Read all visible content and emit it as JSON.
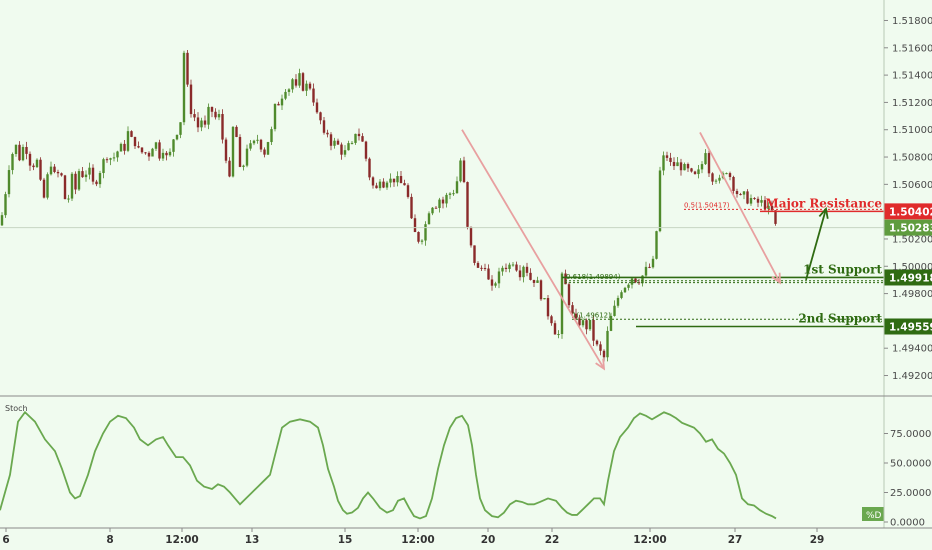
{
  "chart_data": {
    "type": "candlestick",
    "price_axis": {
      "range": [
        1.4905,
        1.5195
      ],
      "ticks": [
        "1.51800",
        "1.51600",
        "1.51400",
        "1.51200",
        "1.51000",
        "1.50800",
        "1.50600",
        "1.50200",
        "1.50000",
        "1.49800",
        "1.49400",
        "1.49200"
      ]
    },
    "x_axis": {
      "ticks": [
        "6",
        "8",
        "12:00",
        "13",
        "15",
        "12:00",
        "20",
        "22",
        "12:00",
        "27",
        "29"
      ]
    },
    "current_price": {
      "value": 1.50283,
      "label": "1.50283",
      "color": "#5f9c3e"
    },
    "levels": [
      {
        "name": "Major Resistance",
        "value": 1.50402,
        "label": "1.50402",
        "color": "#e02b2b"
      },
      {
        "name": "1st Support",
        "value": 1.49918,
        "label": "1.49918",
        "color": "#2f6b12"
      },
      {
        "name": "2nd Support",
        "value": 1.49559,
        "label": "1.49559",
        "color": "#2f6b12"
      }
    ],
    "fib_annotations": [
      {
        "text": "0.5(1.50417)",
        "value": 1.50417,
        "color": "#e02b2b"
      },
      {
        "text": "0.618(1.49894)",
        "value": 1.49894,
        "color": "#2f6b12"
      },
      {
        "text": "1(1.49612)",
        "value": 1.49612,
        "color": "#2f6b12"
      }
    ],
    "close_path": [
      [
        0,
        1.503
      ],
      [
        4,
        1.5045
      ],
      [
        8,
        1.507
      ],
      [
        12,
        1.5082
      ],
      [
        16,
        1.5088
      ],
      [
        20,
        1.5078
      ],
      [
        24,
        1.509
      ],
      [
        28,
        1.5082
      ],
      [
        32,
        1.507
      ],
      [
        36,
        1.5082
      ],
      [
        40,
        1.5062
      ],
      [
        44,
        1.505
      ],
      [
        48,
        1.5068
      ],
      [
        52,
        1.5078
      ],
      [
        56,
        1.506
      ],
      [
        60,
        1.5075
      ],
      [
        64,
        1.505
      ],
      [
        68,
        1.5048
      ],
      [
        72,
        1.5065
      ],
      [
        76,
        1.5055
      ],
      [
        80,
        1.5075
      ],
      [
        84,
        1.5062
      ],
      [
        88,
        1.5075
      ],
      [
        92,
        1.506
      ],
      [
        96,
        1.5062
      ],
      [
        100,
        1.507
      ],
      [
        104,
        1.5078
      ],
      [
        108,
        1.5082
      ],
      [
        112,
        1.5078
      ],
      [
        116,
        1.5082
      ],
      [
        120,
        1.5088
      ],
      [
        124,
        1.5085
      ],
      [
        128,
        1.5098
      ],
      [
        132,
        1.5092
      ],
      [
        136,
        1.509
      ],
      [
        140,
        1.5082
      ],
      [
        144,
        1.5085
      ],
      [
        148,
        1.508
      ],
      [
        152,
        1.5088
      ],
      [
        156,
        1.509
      ],
      [
        160,
        1.508
      ],
      [
        164,
        1.5088
      ],
      [
        168,
        1.5075
      ],
      [
        172,
        1.509
      ],
      [
        176,
        1.51
      ],
      [
        180,
        1.5095
      ],
      [
        183,
        1.5165
      ],
      [
        186,
        1.514
      ],
      [
        190,
        1.5115
      ],
      [
        194,
        1.511
      ],
      [
        198,
        1.5102
      ],
      [
        202,
        1.5108
      ],
      [
        206,
        1.51
      ],
      [
        210,
        1.5122
      ],
      [
        214,
        1.5105
      ],
      [
        218,
        1.5115
      ],
      [
        222,
        1.5095
      ],
      [
        226,
        1.508
      ],
      [
        229,
        1.5055
      ],
      [
        232,
        1.5102
      ],
      [
        236,
        1.5098
      ],
      [
        240,
        1.507
      ],
      [
        244,
        1.5075
      ],
      [
        248,
        1.5092
      ],
      [
        252,
        1.5085
      ],
      [
        256,
        1.5095
      ],
      [
        260,
        1.509
      ],
      [
        264,
        1.5082
      ],
      [
        268,
        1.5092
      ],
      [
        272,
        1.51
      ],
      [
        276,
        1.5122
      ],
      [
        280,
        1.5118
      ],
      [
        284,
        1.5132
      ],
      [
        288,
        1.5128
      ],
      [
        292,
        1.5138
      ],
      [
        296,
        1.513
      ],
      [
        300,
        1.514
      ],
      [
        304,
        1.5128
      ],
      [
        308,
        1.5135
      ],
      [
        312,
        1.5128
      ],
      [
        316,
        1.5112
      ],
      [
        320,
        1.5108
      ],
      [
        324,
        1.5095
      ],
      [
        328,
        1.5098
      ],
      [
        332,
        1.5088
      ],
      [
        336,
        1.5092
      ],
      [
        340,
        1.5085
      ],
      [
        344,
        1.5082
      ],
      [
        348,
        1.5088
      ],
      [
        352,
        1.5088
      ],
      [
        356,
        1.51
      ],
      [
        360,
        1.5095
      ],
      [
        364,
        1.5088
      ],
      [
        368,
        1.507
      ],
      [
        372,
        1.506
      ],
      [
        376,
        1.5055
      ],
      [
        380,
        1.5065
      ],
      [
        384,
        1.506
      ],
      [
        388,
        1.5065
      ],
      [
        392,
        1.5062
      ],
      [
        396,
        1.5065
      ],
      [
        400,
        1.506
      ],
      [
        404,
        1.5062
      ],
      [
        408,
        1.505
      ],
      [
        412,
        1.503
      ],
      [
        416,
        1.5022
      ],
      [
        420,
        1.5018
      ],
      [
        424,
        1.5025
      ],
      [
        428,
        1.504
      ],
      [
        432,
        1.5045
      ],
      [
        436,
        1.5045
      ],
      [
        440,
        1.505
      ],
      [
        444,
        1.5045
      ],
      [
        448,
        1.5055
      ],
      [
        452,
        1.5052
      ],
      [
        456,
        1.506
      ],
      [
        460,
        1.507
      ],
      [
        462,
        1.51
      ],
      [
        465,
        1.504
      ],
      [
        468,
        1.5025
      ],
      [
        472,
        1.501
      ],
      [
        476,
        1.5
      ],
      [
        480,
        1.4995
      ],
      [
        484,
        1.5005
      ],
      [
        488,
        1.499
      ],
      [
        492,
        1.4983
      ],
      [
        496,
        1.499
      ],
      [
        500,
        1.4995
      ],
      [
        504,
        1.5002
      ],
      [
        508,
        1.4998
      ],
      [
        512,
        1.5005
      ],
      [
        516,
        1.5
      ],
      [
        520,
        1.4995
      ],
      [
        524,
        1.5002
      ],
      [
        528,
        1.4995
      ],
      [
        532,
        1.4988
      ],
      [
        536,
        1.4992
      ],
      [
        540,
        1.498
      ],
      [
        544,
        1.4975
      ],
      [
        548,
        1.4965
      ],
      [
        552,
        1.496
      ],
      [
        556,
        1.495
      ],
      [
        560,
        1.495
      ],
      [
        562,
        1.4992
      ],
      [
        566,
        1.4985
      ],
      [
        570,
        1.497
      ],
      [
        574,
        1.496
      ],
      [
        578,
        1.4958
      ],
      [
        582,
        1.496
      ],
      [
        586,
        1.4955
      ],
      [
        590,
        1.4958
      ],
      [
        594,
        1.4945
      ],
      [
        598,
        1.494
      ],
      [
        602,
        1.4935
      ],
      [
        605,
        1.4932
      ],
      [
        608,
        1.4955
      ],
      [
        612,
        1.4965
      ],
      [
        616,
        1.4972
      ],
      [
        620,
        1.4982
      ],
      [
        624,
        1.4985
      ],
      [
        628,
        1.4988
      ],
      [
        632,
        1.4992
      ],
      [
        636,
        1.499
      ],
      [
        640,
        1.499
      ],
      [
        644,
        1.4995
      ],
      [
        648,
        1.5
      ],
      [
        652,
        1.4998
      ],
      [
        656,
        1.5018
      ],
      [
        659,
        1.5065
      ],
      [
        662,
        1.5078
      ],
      [
        666,
        1.5082
      ],
      [
        670,
        1.5075
      ],
      [
        674,
        1.5074
      ],
      [
        678,
        1.5075
      ],
      [
        682,
        1.5072
      ],
      [
        686,
        1.5072
      ],
      [
        690,
        1.5068
      ],
      [
        694,
        1.5065
      ],
      [
        698,
        1.5068
      ],
      [
        702,
        1.5075
      ],
      [
        705,
        1.5088
      ],
      [
        708,
        1.5072
      ],
      [
        712,
        1.5065
      ],
      [
        716,
        1.5065
      ],
      [
        720,
        1.5062
      ],
      [
        724,
        1.5068
      ],
      [
        728,
        1.5072
      ],
      [
        732,
        1.506
      ],
      [
        736,
        1.5055
      ],
      [
        740,
        1.505
      ],
      [
        744,
        1.5052
      ],
      [
        748,
        1.5048
      ],
      [
        752,
        1.505
      ],
      [
        756,
        1.5045
      ],
      [
        760,
        1.5048
      ],
      [
        764,
        1.5045
      ],
      [
        768,
        1.5042
      ],
      [
        772,
        1.504
      ],
      [
        776,
        1.5028
      ]
    ],
    "arrows": [
      {
        "from": [
          462,
          1.51
        ],
        "to": [
          604,
          1.4925
        ],
        "color": "#e8a0a0"
      },
      {
        "from": [
          700,
          1.5098
        ],
        "to": [
          780,
          1.4988
        ],
        "color": "#e8a0a0"
      },
      {
        "from": [
          806,
          1.499
        ],
        "to": [
          826,
          1.5042
        ],
        "color": "#2f6b12"
      }
    ],
    "stoch": {
      "label": "Stoch",
      "series_label": "%D",
      "color": "#6aa84f",
      "range": [
        0,
        100
      ],
      "ticks": [
        "75.0000",
        "50.0000",
        "25.0000",
        "0.0000"
      ],
      "values": [
        [
          0,
          10
        ],
        [
          10,
          40
        ],
        [
          18,
          85
        ],
        [
          25,
          93
        ],
        [
          35,
          85
        ],
        [
          45,
          70
        ],
        [
          55,
          60
        ],
        [
          62,
          45
        ],
        [
          70,
          25
        ],
        [
          75,
          20
        ],
        [
          80,
          22
        ],
        [
          88,
          40
        ],
        [
          95,
          60
        ],
        [
          103,
          75
        ],
        [
          110,
          85
        ],
        [
          118,
          90
        ],
        [
          126,
          88
        ],
        [
          134,
          80
        ],
        [
          140,
          70
        ],
        [
          148,
          65
        ],
        [
          156,
          70
        ],
        [
          163,
          72
        ],
        [
          168,
          65
        ],
        [
          176,
          55
        ],
        [
          183,
          55
        ],
        [
          190,
          48
        ],
        [
          197,
          35
        ],
        [
          204,
          30
        ],
        [
          212,
          28
        ],
        [
          218,
          32
        ],
        [
          224,
          30
        ],
        [
          230,
          25
        ],
        [
          235,
          20
        ],
        [
          240,
          15
        ],
        [
          246,
          20
        ],
        [
          252,
          25
        ],
        [
          258,
          30
        ],
        [
          264,
          35
        ],
        [
          270,
          40
        ],
        [
          276,
          60
        ],
        [
          282,
          80
        ],
        [
          290,
          85
        ],
        [
          300,
          87
        ],
        [
          310,
          85
        ],
        [
          318,
          80
        ],
        [
          323,
          65
        ],
        [
          328,
          45
        ],
        [
          334,
          30
        ],
        [
          338,
          18
        ],
        [
          343,
          10
        ],
        [
          347,
          7
        ],
        [
          352,
          8
        ],
        [
          358,
          12
        ],
        [
          363,
          20
        ],
        [
          368,
          25
        ],
        [
          373,
          20
        ],
        [
          380,
          12
        ],
        [
          387,
          8
        ],
        [
          393,
          10
        ],
        [
          398,
          18
        ],
        [
          404,
          20
        ],
        [
          409,
          12
        ],
        [
          414,
          5
        ],
        [
          420,
          3
        ],
        [
          426,
          5
        ],
        [
          432,
          20
        ],
        [
          438,
          45
        ],
        [
          444,
          65
        ],
        [
          450,
          80
        ],
        [
          456,
          88
        ],
        [
          462,
          90
        ],
        [
          468,
          82
        ],
        [
          472,
          65
        ],
        [
          476,
          40
        ],
        [
          480,
          20
        ],
        [
          485,
          10
        ],
        [
          492,
          5
        ],
        [
          498,
          4
        ],
        [
          504,
          8
        ],
        [
          510,
          15
        ],
        [
          516,
          18
        ],
        [
          522,
          17
        ],
        [
          528,
          15
        ],
        [
          534,
          15
        ],
        [
          540,
          17
        ],
        [
          548,
          20
        ],
        [
          556,
          18
        ],
        [
          562,
          12
        ],
        [
          567,
          8
        ],
        [
          572,
          6
        ],
        [
          577,
          6
        ],
        [
          582,
          10
        ],
        [
          588,
          15
        ],
        [
          594,
          20
        ],
        [
          600,
          20
        ],
        [
          604,
          15
        ],
        [
          608,
          35
        ],
        [
          614,
          60
        ],
        [
          620,
          72
        ],
        [
          628,
          80
        ],
        [
          634,
          88
        ],
        [
          640,
          92
        ],
        [
          646,
          90
        ],
        [
          652,
          87
        ],
        [
          658,
          90
        ],
        [
          664,
          93
        ],
        [
          670,
          91
        ],
        [
          676,
          88
        ],
        [
          682,
          84
        ],
        [
          688,
          82
        ],
        [
          694,
          80
        ],
        [
          700,
          75
        ],
        [
          706,
          68
        ],
        [
          712,
          70
        ],
        [
          718,
          62
        ],
        [
          724,
          58
        ],
        [
          730,
          50
        ],
        [
          736,
          40
        ],
        [
          742,
          20
        ],
        [
          748,
          15
        ],
        [
          754,
          14
        ],
        [
          760,
          10
        ],
        [
          766,
          7
        ],
        [
          772,
          5
        ],
        [
          776,
          3
        ]
      ]
    }
  }
}
